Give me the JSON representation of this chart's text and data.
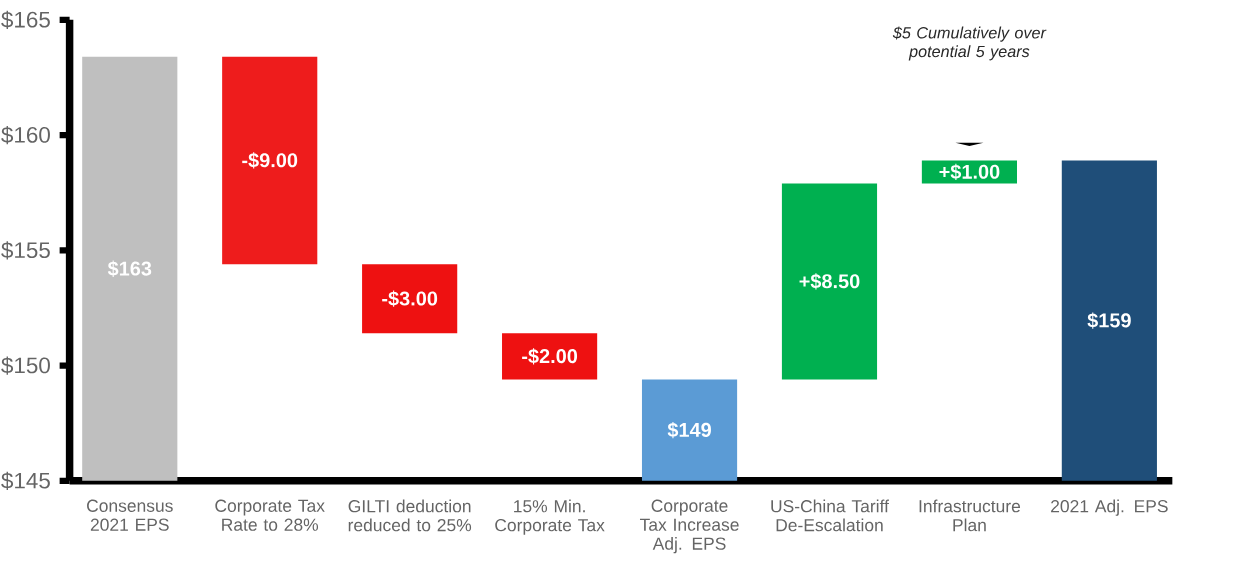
{
  "chart_data": {
    "type": "bar",
    "categories": [
      "Consensus 2021 EPS",
      "Corporate Tax Rate to 28%",
      "GILTI deduction reduced to 25%",
      "15% Min. Corporate Tax",
      "Corporate Tax Increase Adj. EPS",
      "US-China Tariff De-Escalation",
      "Infrastructure Plan",
      "2021 Adj. EPS"
    ],
    "values": [
      18.4,
      -9,
      -3,
      -2,
      4.4,
      8.5,
      1,
      13.9
    ],
    "base": [
      145,
      163.4,
      154.4,
      151.4,
      145,
      149.4,
      157.9,
      145
    ],
    "colors": [
      "#bfbfbf",
      "#ee1c1c",
      "#ee1111",
      "#ee1111",
      "#5b9bd5",
      "#00b050",
      "#00b050",
      "#1f4e79"
    ],
    "value_labels": [
      "$163",
      "-$9.00",
      "-$3.00",
      "-$2.00",
      "$149",
      "+$8.50",
      "+$1.00",
      "$159"
    ],
    "ylim": [
      145,
      165
    ],
    "yticks": [
      {
        "value": 145,
        "label": "$145"
      },
      {
        "value": 150,
        "label": "$150"
      },
      {
        "value": 155,
        "label": "$155"
      },
      {
        "value": 160,
        "label": "$160"
      },
      {
        "value": 165,
        "label": "$165"
      }
    ],
    "annotations": [
      "$5 Cumulatively over potential 5 years"
    ],
    "grid": false
  }
}
